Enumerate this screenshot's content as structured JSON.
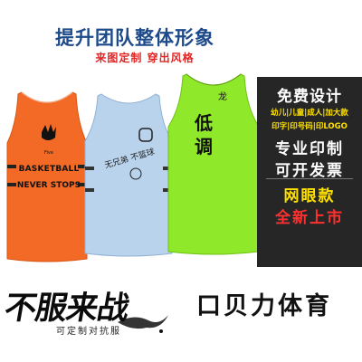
{
  "banner": {
    "headline": "提升团队整体形象",
    "subline": "来图定制   穿出风格"
  },
  "jerseys": {
    "orange": {
      "color": "#f26a25",
      "line1": "BASKETBALL",
      "line2": "NEVER STOPS",
      "logo_text": "Five"
    },
    "blue": {
      "color": "#b9d3ec",
      "script": "无兄弟 不篮球"
    },
    "green": {
      "color": "#8fe82a",
      "char1": "低",
      "char2": "调",
      "small_mark": "龙"
    }
  },
  "panel": {
    "title": "免费设计",
    "line1": "幼儿|儿童|成人|加大款",
    "line2": "印字|印号码|印LOGO",
    "big1": "专业印制",
    "big2": "可开发票",
    "big3": "网眼款",
    "big4": "全新上市",
    "bg_color": "#262626",
    "accent_yellow": "#ffe100",
    "accent_red": "#ff3030"
  },
  "footer": {
    "brush_title": "不服来战",
    "brush_sub": "可定制对抗服",
    "brand": "口贝力体育"
  }
}
